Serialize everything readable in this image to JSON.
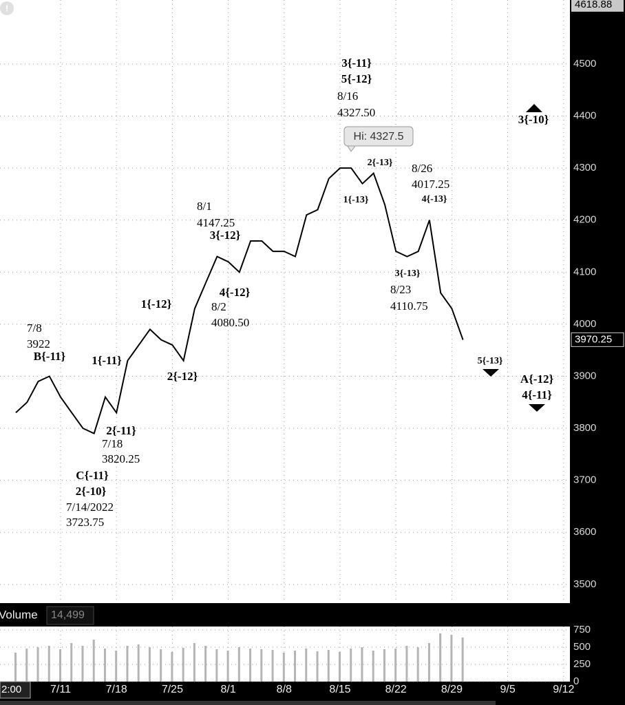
{
  "chart_data": [
    {
      "type": "line",
      "color": "#000000",
      "x": [
        "7/5",
        "7/6",
        "7/7",
        "7/8",
        "7/11",
        "7/12",
        "7/13",
        "7/14",
        "7/15",
        "7/18",
        "7/19",
        "7/20",
        "7/21",
        "7/22",
        "7/25",
        "7/26",
        "7/27",
        "7/28",
        "7/29",
        "8/1",
        "8/2",
        "8/3",
        "8/4",
        "8/5",
        "8/8",
        "8/9",
        "8/10",
        "8/11",
        "8/12",
        "8/15",
        "8/16",
        "8/17",
        "8/18",
        "8/19",
        "8/22",
        "8/23",
        "8/24",
        "8/25",
        "8/26",
        "8/29",
        "8/30"
      ],
      "values": [
        3830,
        3850,
        3890,
        3900,
        3860,
        3830,
        3800,
        3790,
        3860,
        3830,
        3930,
        3960,
        3990,
        3970,
        3960,
        3930,
        4030,
        4080,
        4130,
        4120,
        4100,
        4160,
        4160,
        4140,
        4140,
        4130,
        4210,
        4220,
        4280,
        4300,
        4300,
        4270,
        4290,
        4230,
        4140,
        4130,
        4140,
        4200,
        4060,
        4030,
        3970
      ],
      "xticks": [
        "7/11",
        "7/18",
        "7/25",
        "8/1",
        "8/8",
        "8/15",
        "8/22",
        "8/29",
        "9/5",
        "9/12"
      ],
      "cursor_label": "2:00",
      "ylim": [
        3468,
        4623
      ],
      "yticks": [
        3500,
        3600,
        3700,
        3800,
        3900,
        4000,
        4100,
        4200,
        4300,
        4400,
        4500
      ],
      "top_price": 4618.88,
      "last_price": 3970.25,
      "grid": true,
      "annotations": [
        "3{-11}",
        "5{-12}",
        "8/16",
        "4327.50",
        "Hi: 4327.5",
        "3{-10}",
        "2{-13}",
        "8/26",
        "4017.25",
        "4{-13}",
        "1{-13}",
        "8/1",
        "4147.25",
        "3{-12}",
        "3{-13}",
        "8/23",
        "4110.75",
        "4{-12}",
        "1{-12}",
        "8/2",
        "4080.50",
        "7/8",
        "3922",
        "B{-11}",
        "1{-11}",
        "5{-13}",
        "2{-12}",
        "A{-12}",
        "4{-11}",
        "2{-11}",
        "7/18",
        "3820.25",
        "C{-11}",
        "2{-10}",
        "7/14/2022",
        "3723.75"
      ]
    },
    {
      "type": "bar",
      "title": "Volume",
      "last_value": {
        "value": 14499,
        "label": "14,499"
      },
      "color": "#b4b4b4",
      "values": [
        420,
        480,
        500,
        520,
        470,
        560,
        520,
        610,
        480,
        450,
        520,
        540,
        500,
        470,
        430,
        490,
        560,
        520,
        470,
        450,
        500,
        480,
        470,
        460,
        420,
        450,
        480,
        440,
        460,
        430,
        480,
        500,
        450,
        470,
        480,
        520,
        500,
        560,
        700,
        680,
        640
      ],
      "ylim": [
        0,
        800
      ],
      "yticks": [
        0,
        250,
        500,
        750
      ]
    }
  ]
}
